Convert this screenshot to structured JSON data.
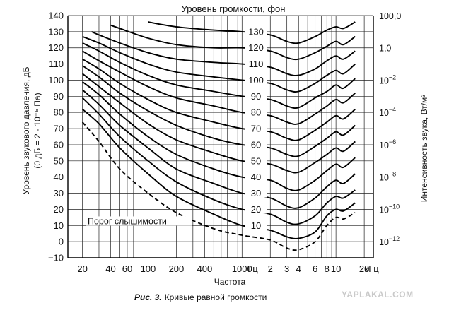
{
  "chart_data": {
    "type": "line",
    "title": "Уровень громкости, фон",
    "xlabel": "Частота",
    "ylabel_left_line1": "Уровень звукового давления, дБ",
    "ylabel_left_line2": "(0 дБ = 2 · 10⁻⁵ Па)",
    "ylabel_right": "Интенсивность звука, Вт/м²",
    "x_scale": "log",
    "xlim_hz": [
      14,
      25000
    ],
    "ylim": [
      -10,
      140
    ],
    "grid": true,
    "y_ticks": [
      "−10",
      "0",
      "10",
      "20",
      "30",
      "40",
      "50",
      "60",
      "70",
      "80",
      "90",
      "100",
      "110",
      "120",
      "130",
      "140"
    ],
    "x_tick_labels": [
      {
        "hz": 20,
        "label": "20"
      },
      {
        "hz": 40,
        "label": "40"
      },
      {
        "hz": 60,
        "label": "60"
      },
      {
        "hz": 100,
        "label": "100"
      },
      {
        "hz": 200,
        "label": "200"
      },
      {
        "hz": 400,
        "label": "400"
      },
      {
        "hz": 1000,
        "label": "1000"
      },
      {
        "hz": 1300,
        "label": "Гц"
      },
      {
        "hz": 2000,
        "label": "2"
      },
      {
        "hz": 3000,
        "label": "3"
      },
      {
        "hz": 4000,
        "label": "4"
      },
      {
        "hz": 6000,
        "label": "6"
      },
      {
        "hz": 8000,
        "label": "8"
      },
      {
        "hz": 10000,
        "label": "10"
      },
      {
        "hz": 20000,
        "label": "20"
      },
      {
        "hz": 24000,
        "label": "кГц"
      }
    ],
    "right_axis_ticks": [
      {
        "db": 140,
        "label": "100,0"
      },
      {
        "db": 120,
        "label": "1,0"
      },
      {
        "db": 100,
        "label": "10",
        "exp": "−2"
      },
      {
        "db": 80,
        "label": "10",
        "exp": "−4"
      },
      {
        "db": 60,
        "label": "10",
        "exp": "−6"
      },
      {
        "db": 40,
        "label": "10",
        "exp": "−8"
      },
      {
        "db": 20,
        "label": "10",
        "exp": "−10"
      },
      {
        "db": 0,
        "label": "10",
        "exp": "−12"
      }
    ],
    "curve_labels": [
      "10",
      "20",
      "30",
      "40",
      "50",
      "60",
      "70",
      "80",
      "90",
      "100",
      "110",
      "120",
      "130"
    ],
    "threshold_label": "Порог слышимости",
    "series": [
      {
        "phon": 10,
        "x": [
          20,
          30,
          50,
          100,
          200,
          500,
          1000,
          2000,
          3000,
          4000,
          6000,
          8000,
          10000,
          12000,
          16000
        ],
        "y": [
          82,
          73,
          58,
          42,
          28,
          17,
          10,
          7,
          3,
          2,
          6,
          16,
          20,
          19,
          24
        ]
      },
      {
        "phon": 20,
        "x": [
          20,
          30,
          50,
          100,
          200,
          500,
          1000,
          2000,
          3000,
          4000,
          6000,
          8000,
          10000,
          12000,
          16000
        ],
        "y": [
          89,
          79,
          65,
          50,
          37,
          26,
          20,
          17,
          12,
          11,
          16,
          24,
          28,
          27,
          32
        ]
      },
      {
        "phon": 30,
        "x": [
          20,
          30,
          50,
          100,
          200,
          500,
          1000,
          2000,
          3000,
          4000,
          6000,
          8000,
          10000,
          12000,
          16000
        ],
        "y": [
          94,
          85,
          72,
          58,
          45,
          36,
          30,
          27,
          22,
          21,
          27,
          34,
          38,
          36,
          42
        ]
      },
      {
        "phon": 40,
        "x": [
          20,
          30,
          50,
          100,
          200,
          500,
          1000,
          2000,
          3000,
          4000,
          6000,
          8000,
          10000,
          12000,
          16000
        ],
        "y": [
          99,
          91,
          79,
          65,
          54,
          45,
          40,
          38,
          33,
          32,
          38,
          44,
          48,
          46,
          52
        ]
      },
      {
        "phon": 50,
        "x": [
          20,
          30,
          50,
          100,
          200,
          500,
          1000,
          2000,
          3000,
          4000,
          6000,
          8000,
          10000,
          12000,
          16000
        ],
        "y": [
          104,
          96,
          86,
          73,
          63,
          55,
          50,
          48,
          44,
          43,
          49,
          54,
          58,
          56,
          62
        ]
      },
      {
        "phon": 60,
        "x": [
          20,
          30,
          50,
          100,
          200,
          500,
          1000,
          2000,
          3000,
          4000,
          6000,
          8000,
          10000,
          12000,
          16000
        ],
        "y": [
          109,
          102,
          92,
          81,
          72,
          64,
          60,
          58,
          54,
          53,
          59,
          64,
          68,
          66,
          72
        ]
      },
      {
        "phon": 70,
        "x": [
          20,
          30,
          50,
          100,
          200,
          500,
          1000,
          2000,
          3000,
          4000,
          6000,
          8000,
          10000,
          12000,
          16000
        ],
        "y": [
          113,
          107,
          98,
          88,
          80,
          74,
          70,
          68,
          64,
          63,
          69,
          74,
          78,
          76,
          82
        ]
      },
      {
        "phon": 80,
        "x": [
          20,
          30,
          50,
          100,
          200,
          500,
          1000,
          2000,
          3000,
          4000,
          6000,
          8000,
          10000,
          12000,
          16000
        ],
        "y": [
          118,
          112,
          105,
          96,
          89,
          84,
          80,
          78,
          74,
          73,
          79,
          84,
          88,
          86,
          92
        ]
      },
      {
        "phon": 90,
        "x": [
          20,
          30,
          50,
          100,
          200,
          500,
          1000,
          2000,
          3000,
          4000,
          6000,
          8000,
          10000,
          12000,
          16000
        ],
        "y": [
          123,
          118,
          111,
          103,
          97,
          93,
          90,
          88,
          84,
          83,
          89,
          93,
          97,
          95,
          101
        ]
      },
      {
        "phon": 100,
        "x": [
          20,
          30,
          50,
          100,
          200,
          500,
          1000,
          2000,
          3000,
          4000,
          6000,
          8000,
          10000,
          12000,
          16000
        ],
        "y": [
          127,
          123,
          117,
          110,
          105,
          102,
          100,
          98,
          94,
          93,
          98,
          103,
          106,
          104,
          110
        ]
      },
      {
        "phon": 110,
        "x": [
          25,
          30,
          50,
          100,
          200,
          500,
          1000,
          2000,
          3000,
          4000,
          6000,
          8000,
          10000,
          12000,
          16000
        ],
        "y": [
          130,
          128,
          123,
          117,
          113,
          111,
          110,
          108,
          104,
          103,
          107,
          112,
          115,
          113,
          118
        ]
      },
      {
        "phon": 120,
        "x": [
          40,
          50,
          100,
          200,
          500,
          1000,
          2000,
          3000,
          4000,
          6000,
          8000,
          10000,
          12000,
          16000
        ],
        "y": [
          134,
          132,
          126,
          122,
          120,
          120,
          118,
          114,
          113,
          117,
          121,
          124,
          122,
          127
        ]
      },
      {
        "phon": 130,
        "x": [
          100,
          200,
          500,
          1000,
          2000,
          3000,
          4000,
          6000,
          8000,
          10000,
          12000,
          16000
        ],
        "y": [
          136,
          133,
          131,
          130,
          128,
          124,
          123,
          127,
          131,
          133,
          132,
          136
        ]
      }
    ],
    "threshold": {
      "x": [
        20,
        30,
        50,
        100,
        200,
        500,
        1000,
        2000,
        3000,
        4000,
        6000,
        8000,
        10000,
        12000,
        16000
      ],
      "y": [
        74,
        62,
        45,
        30,
        18,
        8,
        4,
        1,
        -4,
        -5,
        0,
        10,
        15,
        14,
        18
      ]
    }
  },
  "caption": {
    "figure": "Рис. 3.",
    "text": "Кривые равной громкости"
  },
  "watermark": "YAPLAKAL.COM"
}
